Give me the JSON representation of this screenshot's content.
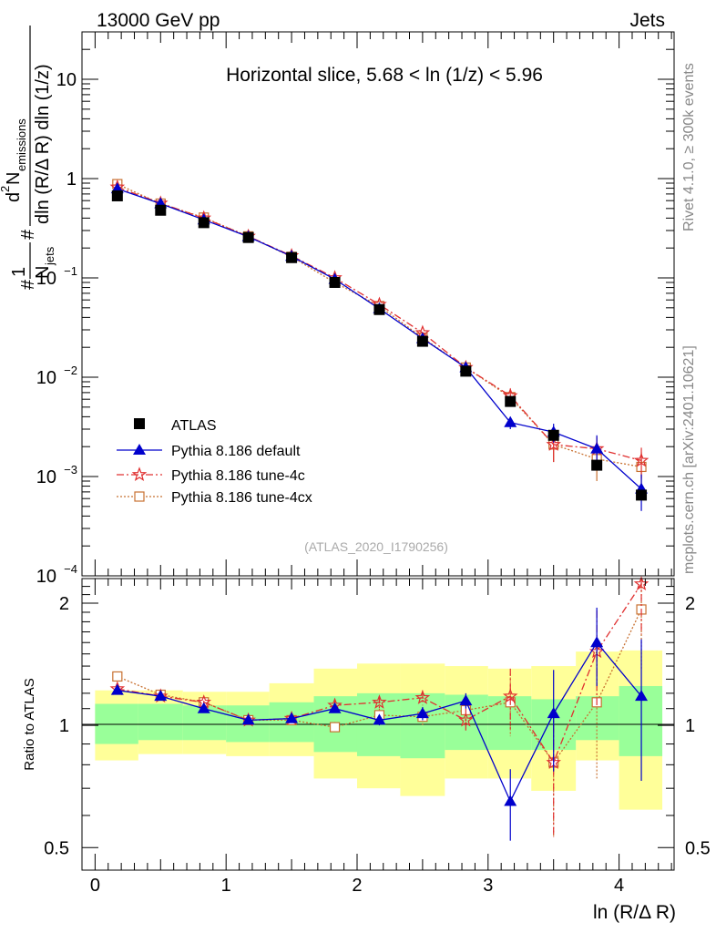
{
  "header": {
    "left": "13000 GeV pp",
    "right": "Jets",
    "side_top": "Rivet 4.1.0, ≥ 300k events",
    "side_bottom": "mcplots.cern.ch [arXiv:2401.10621]"
  },
  "chart_data": [
    {
      "type": "scatter",
      "panel": "main",
      "title": "Horizontal slice, 5.68 < ln (1/z) < 5.96",
      "watermark": "(ATLAS_2020_I1790256)",
      "ylabel": {
        "frac_num": "1",
        "frac_den": "N",
        "frac_den_sub": "jets",
        "d2": "d",
        "d2_sup": "2",
        "nemis": "N",
        "nemis_sub": "emissions",
        "den": "dln (R/Δ R) dln (1/z)",
        "hash1": "#",
        "hash2": "#"
      },
      "yscale": "log",
      "ylim": [
        0.0001,
        30
      ],
      "xlim": [
        -0.1,
        4.42
      ],
      "ytick_labels": [
        {
          "value": 0.0001,
          "mant": "10",
          "exp": "−4"
        },
        {
          "value": 0.001,
          "mant": "10",
          "exp": "−3"
        },
        {
          "value": 0.01,
          "mant": "10",
          "exp": "−2"
        },
        {
          "value": 0.1,
          "mant": "10",
          "exp": "−1"
        },
        {
          "value": 1,
          "mant": "1",
          "exp": ""
        },
        {
          "value": 10,
          "mant": "10",
          "exp": ""
        }
      ],
      "legend_position": "bottom-left",
      "x": [
        0.17,
        0.5,
        0.83,
        1.17,
        1.5,
        1.83,
        2.17,
        2.5,
        2.83,
        3.17,
        3.5,
        3.83,
        4.17
      ],
      "series": [
        {
          "name": "ATLAS",
          "marker": "square",
          "color": "#000000",
          "line": "none",
          "values": [
            0.67,
            0.48,
            0.36,
            0.255,
            0.16,
            0.09,
            0.048,
            0.023,
            0.0115,
            0.0057,
            0.0026,
            0.0013,
            0.00065
          ]
        },
        {
          "name": "Pythia 8.186 default",
          "marker": "triangle",
          "color": "#0000cc",
          "line": "solid",
          "values": [
            0.79,
            0.56,
            0.385,
            0.26,
            0.165,
            0.097,
            0.049,
            0.0245,
            0.0125,
            0.0035,
            0.0028,
            0.0019,
            0.00075
          ],
          "errors": [
            0.004,
            0.003,
            0.002,
            0.002,
            0.002,
            0.001,
            0.0008,
            0.0005,
            0.0004,
            0.0005,
            0.0006,
            0.0007,
            0.0003
          ]
        },
        {
          "name": "Pythia 8.186 tune-4c",
          "marker": "star",
          "color": "#e03030",
          "line": "dashdot",
          "values": [
            0.82,
            0.565,
            0.4,
            0.262,
            0.167,
            0.1,
            0.054,
            0.028,
            0.0125,
            0.0065,
            0.0021,
            0.0019,
            0.00145
          ],
          "errors": [
            0.004,
            0.003,
            0.002,
            0.002,
            0.002,
            0.001,
            0.0009,
            0.0006,
            0.0005,
            0.0012,
            0.0007,
            0.0006,
            0.0005
          ]
        },
        {
          "name": "Pythia 8.186 tune-4cx",
          "marker": "open-square",
          "color": "#c87030",
          "line": "dotted",
          "values": [
            0.88,
            0.56,
            0.405,
            0.262,
            0.163,
            0.09,
            0.052,
            0.025,
            0.0125,
            0.0063,
            0.0021,
            0.0015,
            0.00125
          ],
          "errors": [
            0.004,
            0.003,
            0.002,
            0.002,
            0.002,
            0.001,
            0.0009,
            0.0006,
            0.0005,
            0.0012,
            0.0007,
            0.0006,
            0.0005
          ]
        }
      ]
    },
    {
      "type": "scatter",
      "panel": "ratio",
      "ylabel": "Ratio to ATLAS",
      "xlabel": "ln (R/Δ R)",
      "yscale": "log",
      "ylim": [
        0.44,
        2.3
      ],
      "xlim": [
        -0.1,
        4.42
      ],
      "xticks": [
        0,
        1,
        2,
        3,
        4
      ],
      "xtick_labels": [
        "0",
        "1",
        "2",
        "3",
        "4"
      ],
      "yticks": [
        0.5,
        1,
        2
      ],
      "ytick_labels": [
        "0.5",
        "1",
        "2"
      ],
      "bin_edges": [
        0,
        0.33,
        0.67,
        1.0,
        1.33,
        1.67,
        2.0,
        2.33,
        2.67,
        3.0,
        3.33,
        3.67,
        4.0,
        4.33
      ],
      "bands": {
        "outer_color": "#ffff99",
        "inner_color": "#99ff99",
        "outer_low": [
          0.82,
          0.85,
          0.85,
          0.84,
          0.84,
          0.74,
          0.7,
          0.67,
          0.74,
          0.74,
          0.69,
          0.82,
          0.62
        ],
        "outer_high": [
          1.22,
          1.22,
          1.21,
          1.21,
          1.27,
          1.38,
          1.42,
          1.42,
          1.4,
          1.38,
          1.4,
          1.52,
          1.53
        ],
        "inner_low": [
          0.9,
          0.92,
          0.92,
          0.91,
          0.91,
          0.86,
          0.84,
          0.83,
          0.87,
          0.87,
          0.87,
          0.92,
          0.84
        ],
        "inner_high": [
          1.13,
          1.13,
          1.12,
          1.12,
          1.14,
          1.18,
          1.2,
          1.2,
          1.19,
          1.18,
          1.16,
          1.18,
          1.25
        ]
      },
      "series": [
        {
          "name": "Pythia 8.186 default",
          "color": "#0000cc",
          "values": [
            1.22,
            1.18,
            1.1,
            1.03,
            1.04,
            1.1,
            1.03,
            1.07,
            1.15,
            0.65,
            1.07,
            1.6,
            1.18
          ],
          "errors": [
            0.01,
            0.01,
            0.01,
            0.01,
            0.01,
            0.02,
            0.03,
            0.04,
            0.05,
            0.13,
            0.3,
            0.35,
            0.45
          ]
        },
        {
          "name": "Pythia 8.186 tune-4c",
          "color": "#e03030",
          "values": [
            1.23,
            1.18,
            1.14,
            1.03,
            1.04,
            1.12,
            1.14,
            1.17,
            1.03,
            1.18,
            0.81,
            1.52,
            2.23
          ],
          "errors": [
            0.01,
            0.01,
            0.01,
            0.01,
            0.02,
            0.03,
            0.04,
            0.05,
            0.07,
            0.2,
            0.28,
            0.4,
            0.55
          ]
        },
        {
          "name": "Pythia 8.186 tune-4cx",
          "color": "#c87030",
          "values": [
            1.32,
            1.19,
            1.14,
            1.03,
            1.03,
            0.99,
            1.06,
            1.05,
            1.09,
            1.14,
            0.81,
            1.14,
            1.93
          ],
          "errors": [
            0.01,
            0.01,
            0.01,
            0.01,
            0.02,
            0.03,
            0.04,
            0.05,
            0.07,
            0.2,
            0.28,
            0.4,
            0.55
          ]
        }
      ]
    }
  ]
}
